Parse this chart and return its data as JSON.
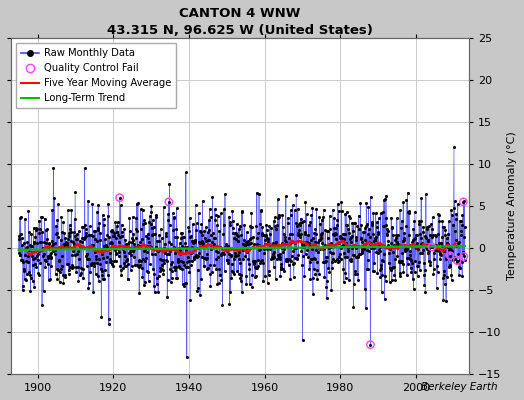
{
  "title": "CANTON 4 WNW",
  "subtitle": "43.315 N, 96.625 W (United States)",
  "ylabel": "Temperature Anomaly (°C)",
  "watermark": "Berkeley Earth",
  "xlim": [
    1893,
    2014
  ],
  "ylim": [
    -15,
    25
  ],
  "yticks": [
    -15,
    -10,
    -5,
    0,
    5,
    10,
    15,
    20,
    25
  ],
  "xticks": [
    1900,
    1920,
    1940,
    1960,
    1980,
    2000
  ],
  "bg_color": "#c8c8c8",
  "plot_bg_color": "#ffffff",
  "grid_color": "#cccccc",
  "line_color_raw": "#4444ff",
  "dot_color_raw": "#000000",
  "line_color_mavg": "#ff0000",
  "line_color_trend": "#00bb00",
  "qc_fail_color": "#ff44ff",
  "seed": 42,
  "start_year": 1895,
  "end_year": 2012,
  "noise_std": 2.5,
  "mavg_window": 60,
  "trend_slope": 0.0003,
  "qc_fail_indices": [
    320,
    476,
    1115,
    1310,
    1368,
    1390,
    1410,
    1411
  ]
}
